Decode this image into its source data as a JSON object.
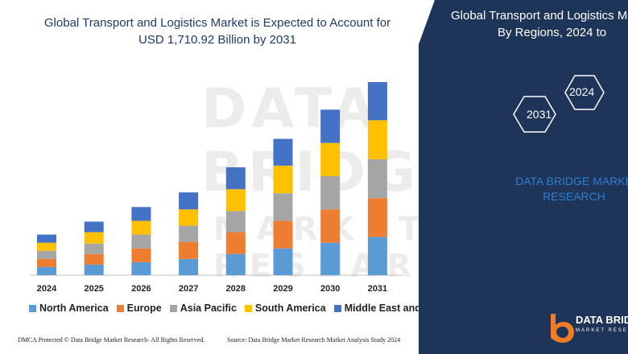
{
  "chart_data": {
    "type": "bar",
    "stacked": true,
    "title": "Global Transport and Logistics Market is Expected to Account for USD 1,710.92 Billion by 2031",
    "categories": [
      "2024",
      "2025",
      "2026",
      "2027",
      "2028",
      "2029",
      "2030",
      "2031"
    ],
    "series": [
      {
        "name": "North America",
        "color": "#5b9bd5",
        "values": [
          10,
          13,
          16,
          20,
          26,
          33,
          40,
          47
        ]
      },
      {
        "name": "Europe",
        "color": "#ed7d31",
        "values": [
          10,
          13,
          17,
          21,
          27,
          34,
          41,
          48
        ]
      },
      {
        "name": "Asia Pacific",
        "color": "#a5a5a5",
        "values": [
          10,
          13,
          17,
          20,
          26,
          34,
          41,
          48
        ]
      },
      {
        "name": "South America",
        "color": "#ffc000",
        "values": [
          10,
          14,
          17,
          20,
          27,
          34,
          41,
          48
        ]
      },
      {
        "name": "Middle East and Africa",
        "color": "#4472c4",
        "values": [
          10,
          13,
          17,
          21,
          27,
          33,
          41,
          47
        ]
      }
    ],
    "legend_position": "bottom",
    "grid": false,
    "ylim": [
      0,
      240
    ]
  },
  "side_panel": {
    "title_line1": "Global Transport and Logistics Ma",
    "title_line2": "By Regions, 2024 to",
    "hex_labels": [
      "2024",
      "2031"
    ],
    "brand_line1": "DATA BRIDGE MARKE",
    "brand_line2": "RESEARCH",
    "background": "#1e3559"
  },
  "watermark": {
    "main": "DATA BRIDGE",
    "sub": "MARKET RESEARCH"
  },
  "footer": {
    "left": "DMCA Protected © Data Bridge Market Research- All Rights Reserved.",
    "right": "Source: Data Bridge Market Research Market Analysis Study 2024"
  },
  "logo": {
    "name": "DATA BRID",
    "tagline": "MARKET RESE",
    "icon": "db-logo-icon"
  }
}
